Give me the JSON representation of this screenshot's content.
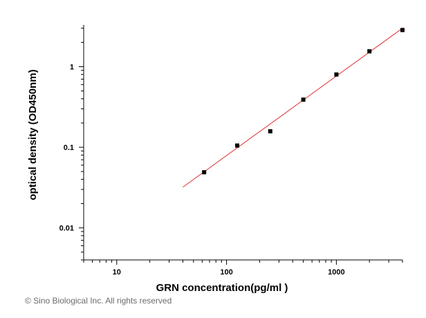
{
  "chart_data": {
    "type": "scatter",
    "xscale": "log",
    "yscale": "log",
    "xlabel": "GRN concentration(pg/ml )",
    "ylabel": "optical density (OD450nm)",
    "xlim": [
      5,
      4000
    ],
    "ylim": [
      0.004,
      3.3
    ],
    "x_ticks": [
      10,
      100,
      1000
    ],
    "x_tick_labels": [
      "10",
      "100",
      "1000"
    ],
    "y_ticks": [
      0.01,
      0.1,
      1
    ],
    "y_tick_labels": [
      "0.01",
      "0.1",
      "1"
    ],
    "grid": false,
    "points": {
      "x": [
        62.5,
        125,
        250,
        500,
        1000,
        2000,
        4000
      ],
      "y": [
        0.049,
        0.105,
        0.158,
        0.39,
        0.8,
        1.55,
        2.85
      ]
    },
    "fit_line": {
      "x": [
        40,
        4000
      ],
      "y": [
        0.032,
        3.0
      ],
      "color": "#e03030"
    },
    "marker_color": "#000000"
  },
  "footer": {
    "copyright": "© Sino Biological Inc. All rights reserved"
  }
}
